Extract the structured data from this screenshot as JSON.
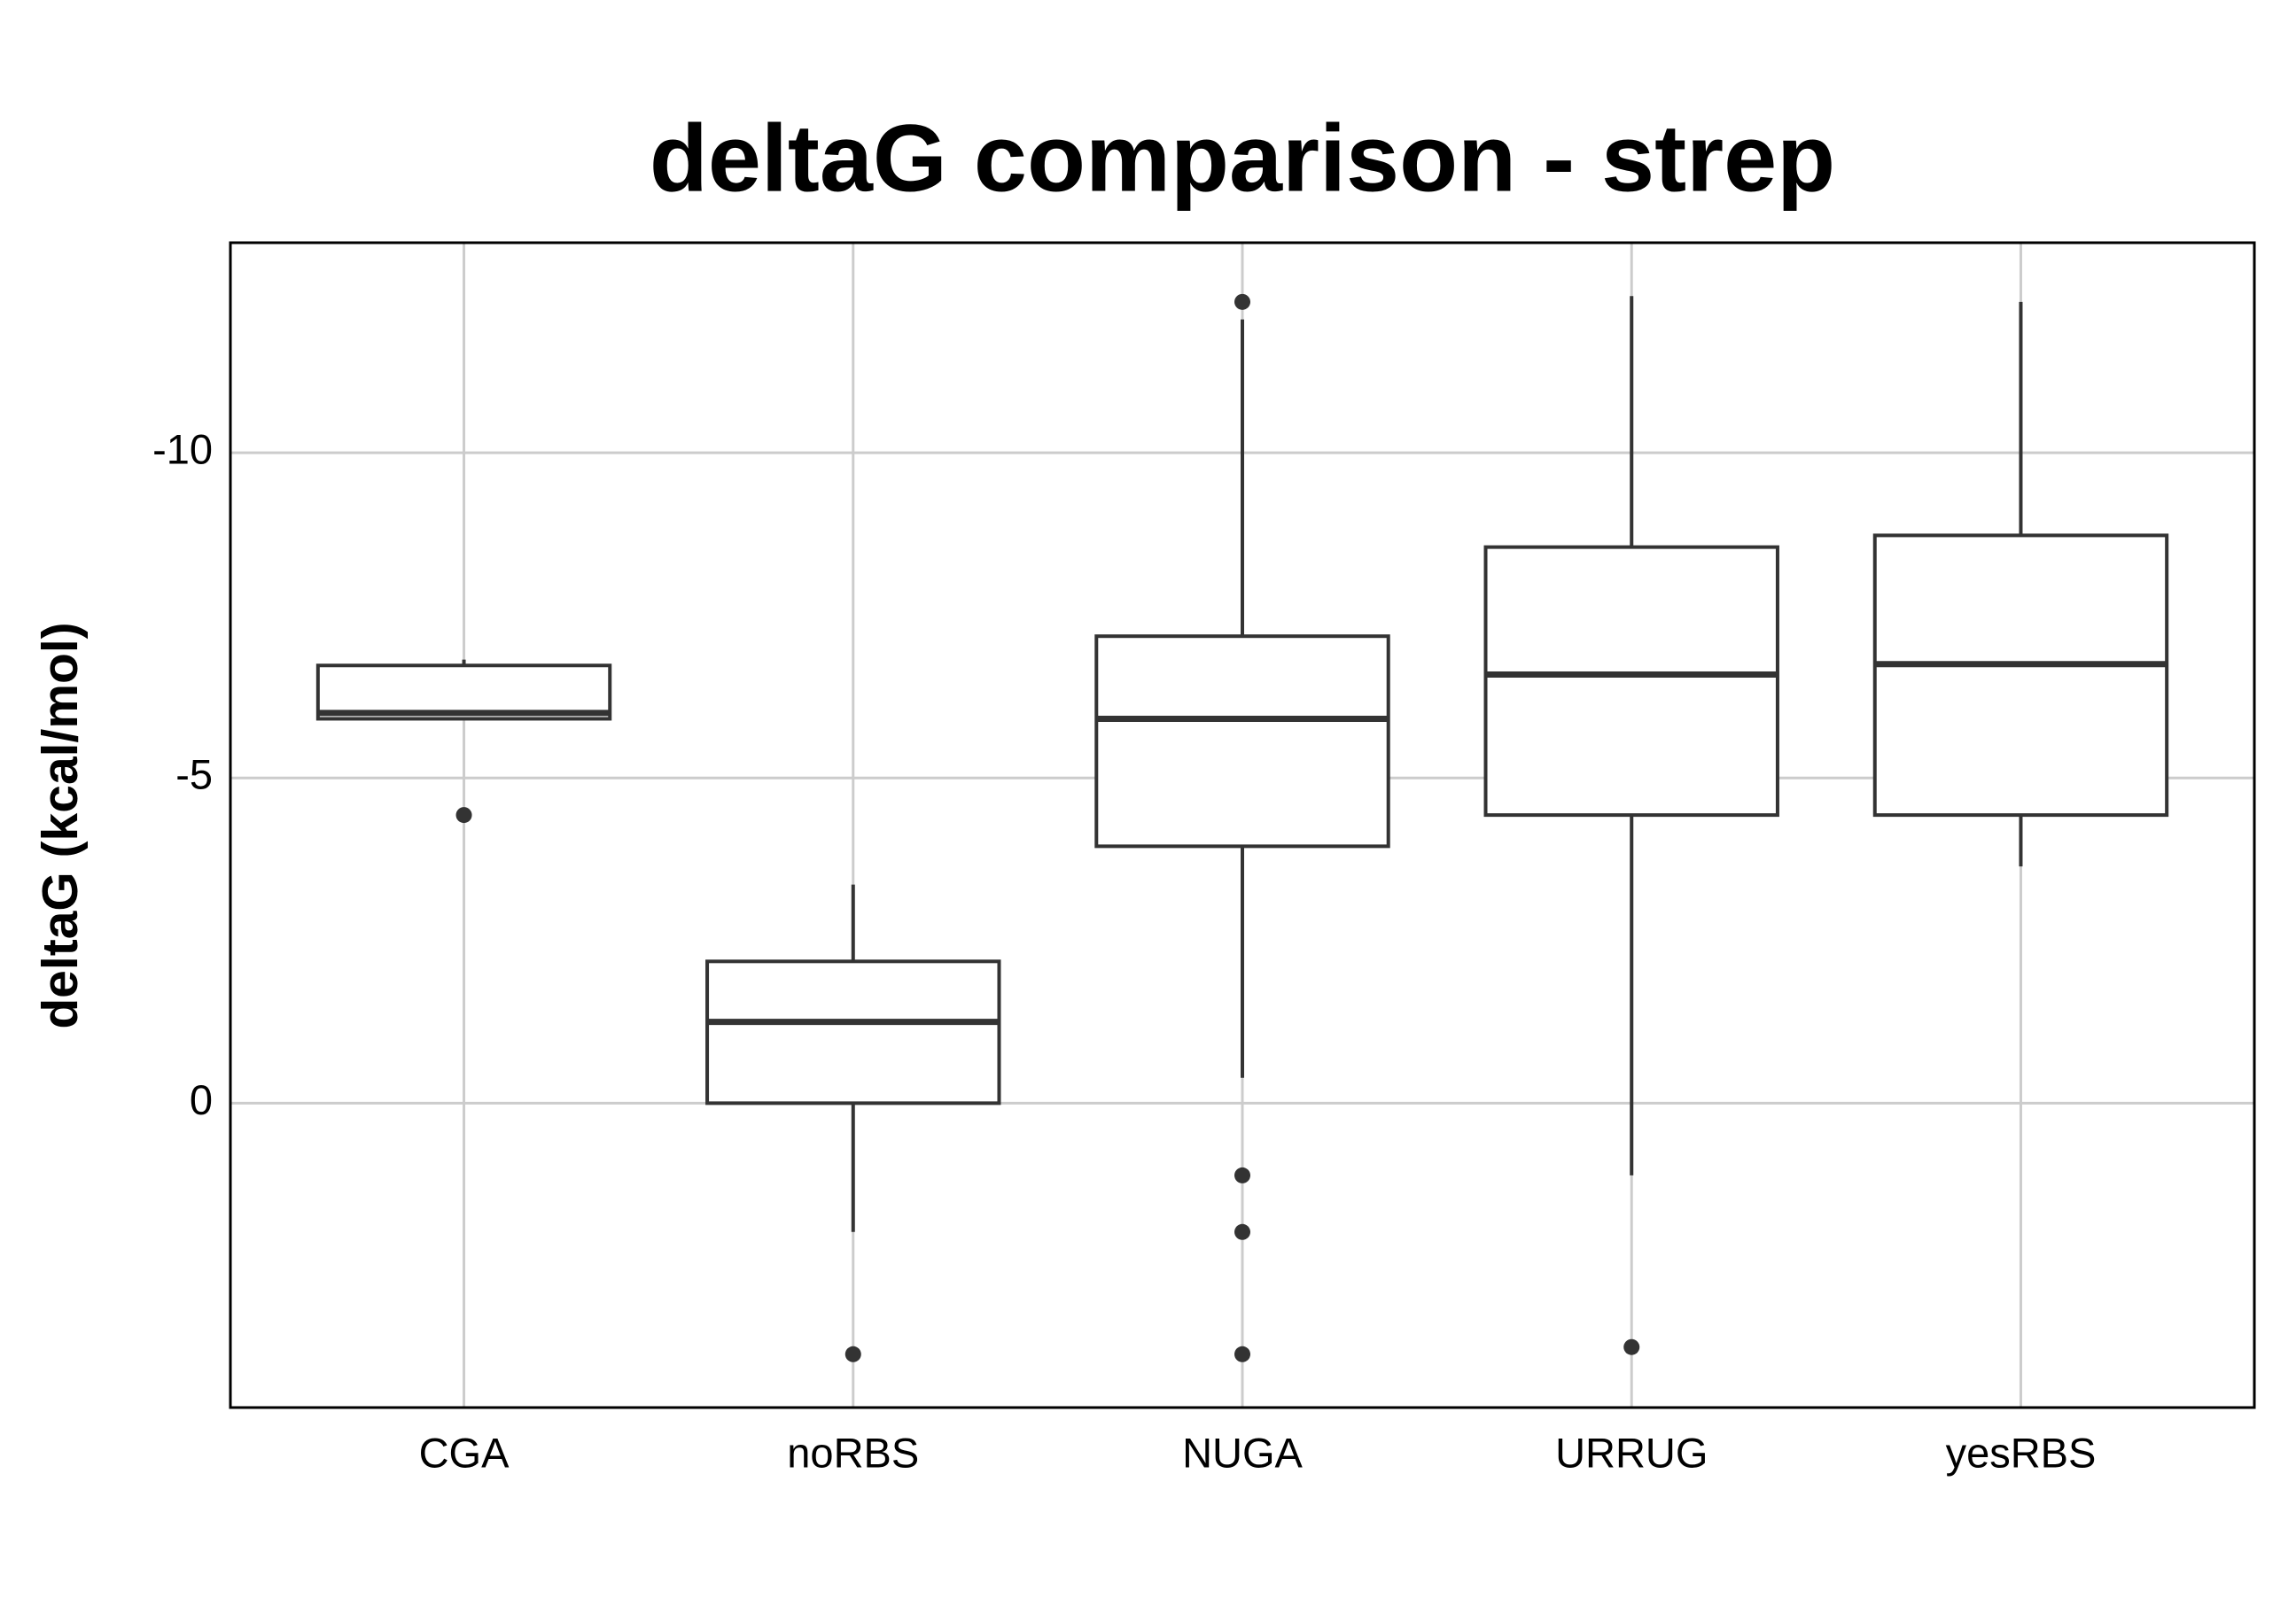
{
  "chart_data": {
    "type": "box",
    "title": "deltaG comparison - strep",
    "y_label": "deltaG (kcal/mol)",
    "categories": [
      "CGA",
      "noRBS",
      "NUGA",
      "URRUG",
      "yesRBS"
    ],
    "boxes": [
      {
        "min": -6.82,
        "q1": -6.73,
        "median": -6.0,
        "q3": -5.91,
        "max": -5.91,
        "outliers": [
          -4.43
        ]
      },
      {
        "min": -3.36,
        "q1": -2.18,
        "median": -1.25,
        "q3": 0,
        "max": 1.98,
        "outliers": [
          3.86
        ]
      },
      {
        "min": -12.05,
        "q1": -7.18,
        "median": -5.91,
        "q3": -3.95,
        "max": -0.39,
        "outliers": [
          -12.32,
          1.11,
          1.98,
          3.86
        ]
      },
      {
        "min": -12.41,
        "q1": -8.55,
        "median": -6.59,
        "q3": -4.43,
        "max": 1.11,
        "outliers": [
          3.75
        ]
      },
      {
        "min": -12.32,
        "q1": -8.73,
        "median": -6.75,
        "q3": -4.43,
        "max": -3.64,
        "outliers": []
      }
    ],
    "color": "#333333",
    "ylim": [
      4.68,
      -13.23
    ],
    "yticks": [
      -10,
      -5,
      0
    ],
    "grid": true
  }
}
